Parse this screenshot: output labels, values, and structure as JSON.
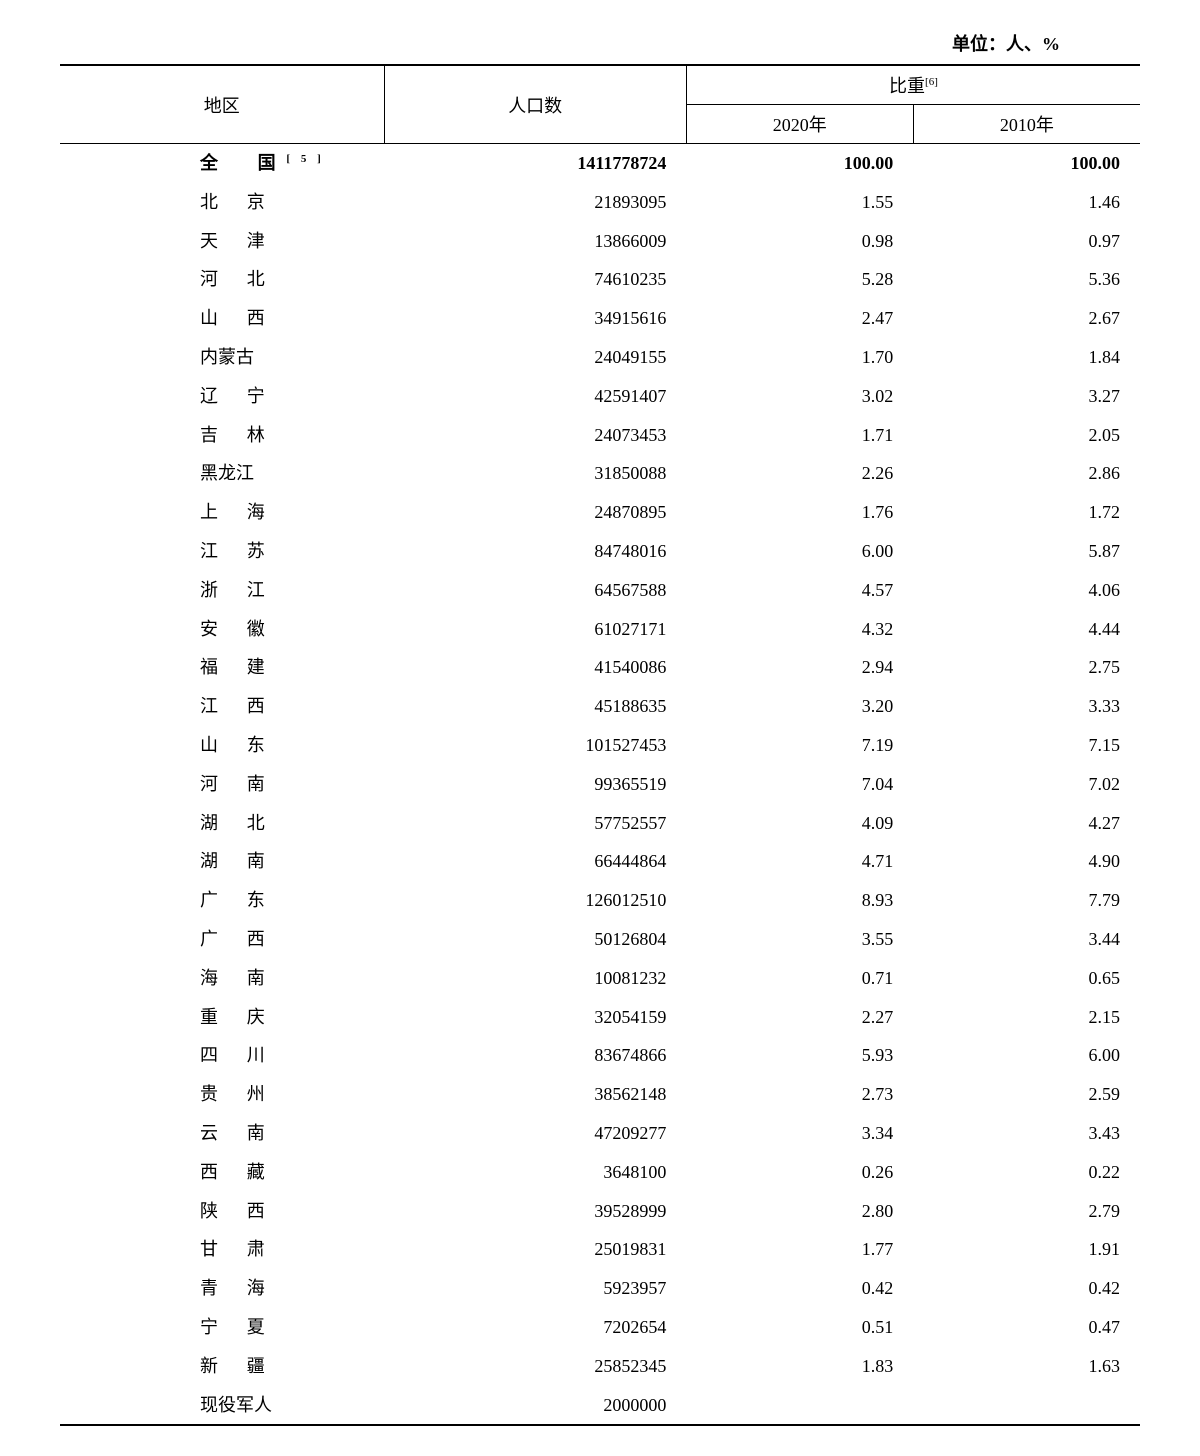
{
  "unit_label": "单位：人、%",
  "headers": {
    "region": "地区",
    "population": "人口数",
    "ratio": "比重",
    "ratio_note": "[6]",
    "year_2020": "2020年",
    "year_2010": "2010年"
  },
  "total_row": {
    "region": "全　国",
    "region_note": "[5]",
    "population": "1411778724",
    "pct_2020": "100.00",
    "pct_2010": "100.00"
  },
  "rows": [
    {
      "region": "北　京",
      "population": "21893095",
      "pct_2020": "1.55",
      "pct_2010": "1.46"
    },
    {
      "region": "天　津",
      "population": "13866009",
      "pct_2020": "0.98",
      "pct_2010": "0.97"
    },
    {
      "region": "河　北",
      "population": "74610235",
      "pct_2020": "5.28",
      "pct_2010": "5.36"
    },
    {
      "region": "山　西",
      "population": "34915616",
      "pct_2020": "2.47",
      "pct_2010": "2.67"
    },
    {
      "region": "内蒙古",
      "population": "24049155",
      "pct_2020": "1.70",
      "pct_2010": "1.84",
      "wide": true
    },
    {
      "region": "辽　宁",
      "population": "42591407",
      "pct_2020": "3.02",
      "pct_2010": "3.27"
    },
    {
      "region": "吉　林",
      "population": "24073453",
      "pct_2020": "1.71",
      "pct_2010": "2.05"
    },
    {
      "region": "黑龙江",
      "population": "31850088",
      "pct_2020": "2.26",
      "pct_2010": "2.86",
      "wide": true
    },
    {
      "region": "上　海",
      "population": "24870895",
      "pct_2020": "1.76",
      "pct_2010": "1.72"
    },
    {
      "region": "江　苏",
      "population": "84748016",
      "pct_2020": "6.00",
      "pct_2010": "5.87"
    },
    {
      "region": "浙　江",
      "population": "64567588",
      "pct_2020": "4.57",
      "pct_2010": "4.06"
    },
    {
      "region": "安　徽",
      "population": "61027171",
      "pct_2020": "4.32",
      "pct_2010": "4.44"
    },
    {
      "region": "福　建",
      "population": "41540086",
      "pct_2020": "2.94",
      "pct_2010": "2.75"
    },
    {
      "region": "江　西",
      "population": "45188635",
      "pct_2020": "3.20",
      "pct_2010": "3.33"
    },
    {
      "region": "山　东",
      "population": "101527453",
      "pct_2020": "7.19",
      "pct_2010": "7.15"
    },
    {
      "region": "河　南",
      "population": "99365519",
      "pct_2020": "7.04",
      "pct_2010": "7.02"
    },
    {
      "region": "湖　北",
      "population": "57752557",
      "pct_2020": "4.09",
      "pct_2010": "4.27"
    },
    {
      "region": "湖　南",
      "population": "66444864",
      "pct_2020": "4.71",
      "pct_2010": "4.90"
    },
    {
      "region": "广　东",
      "population": "126012510",
      "pct_2020": "8.93",
      "pct_2010": "7.79"
    },
    {
      "region": "广　西",
      "population": "50126804",
      "pct_2020": "3.55",
      "pct_2010": "3.44"
    },
    {
      "region": "海　南",
      "population": "10081232",
      "pct_2020": "0.71",
      "pct_2010": "0.65"
    },
    {
      "region": "重　庆",
      "population": "32054159",
      "pct_2020": "2.27",
      "pct_2010": "2.15"
    },
    {
      "region": "四　川",
      "population": "83674866",
      "pct_2020": "5.93",
      "pct_2010": "6.00"
    },
    {
      "region": "贵　州",
      "population": "38562148",
      "pct_2020": "2.73",
      "pct_2010": "2.59"
    },
    {
      "region": "云　南",
      "population": "47209277",
      "pct_2020": "3.34",
      "pct_2010": "3.43"
    },
    {
      "region": "西　藏",
      "population": "3648100",
      "pct_2020": "0.26",
      "pct_2010": "0.22"
    },
    {
      "region": "陕　西",
      "population": "39528999",
      "pct_2020": "2.80",
      "pct_2010": "2.79"
    },
    {
      "region": "甘　肃",
      "population": "25019831",
      "pct_2020": "1.77",
      "pct_2010": "1.91"
    },
    {
      "region": "青　海",
      "population": "5923957",
      "pct_2020": "0.42",
      "pct_2010": "0.42"
    },
    {
      "region": "宁　夏",
      "population": "7202654",
      "pct_2020": "0.51",
      "pct_2010": "0.47"
    },
    {
      "region": "新　疆",
      "population": "25852345",
      "pct_2020": "1.83",
      "pct_2010": "1.63"
    },
    {
      "region": "现役军人",
      "population": "2000000",
      "pct_2020": "",
      "pct_2010": "",
      "wide": true
    }
  ],
  "col_widths": {
    "region": "30%",
    "population": "28%",
    "y2020": "21%",
    "y2010": "21%"
  }
}
